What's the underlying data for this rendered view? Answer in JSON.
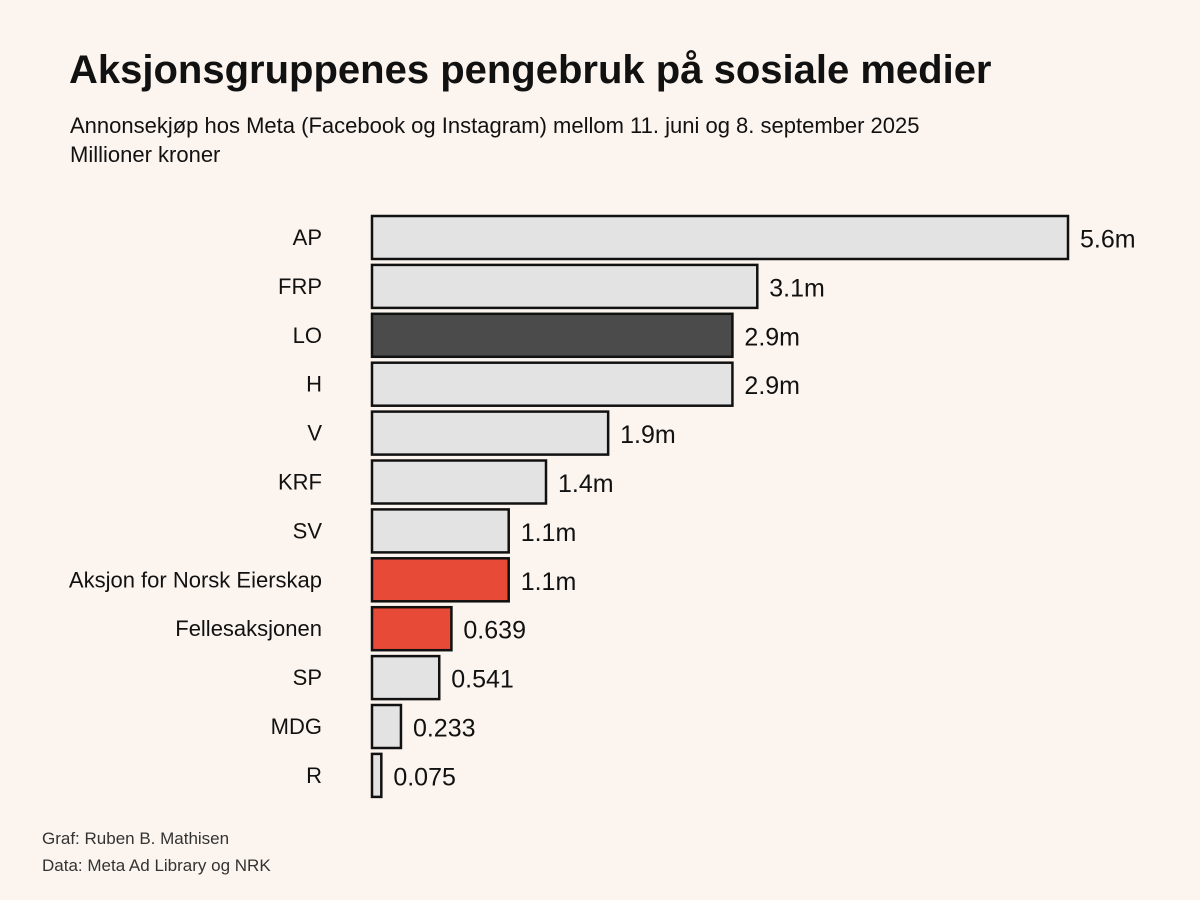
{
  "background": "#fcf5ef",
  "header": {
    "title": "Aksjonsgruppenes pengebruk på sosiale medier",
    "subtitle": "Annonsekjøp hos Meta (Facebook og Instagram) mellom 11. juni og 8. september 2025",
    "unit_note": "Millioner kroner"
  },
  "footer": {
    "graph_credit": "Graf: Ruben B. Mathisen",
    "data_credit": "Data: Meta Ad Library og NRK"
  },
  "colors": {
    "default_bar": "#e3e3e3",
    "lo_bar": "#4b4b4b",
    "action_group_bar": "#e84a38",
    "bar_outline": "#111111",
    "text": "#111111"
  },
  "chart_data": {
    "type": "bar",
    "orientation": "horizontal",
    "title": "Aksjonsgruppenes pengebruk på sosiale medier",
    "subtitle": "Annonsekjøp hos Meta (Facebook og Instagram) mellom 11. juni og 8. september 2025",
    "unit": "Millioner kroner",
    "xlim": [
      0,
      5.6
    ],
    "grid": false,
    "legend": "none",
    "categories": [
      "AP",
      "FRP",
      "LO",
      "H",
      "V",
      "KRF",
      "SV",
      "Aksjon for Norsk Eierskap",
      "Fellesaksjonen",
      "SP",
      "MDG",
      "R"
    ],
    "values": [
      5.6,
      3.1,
      2.9,
      2.9,
      1.9,
      1.4,
      1.1,
      1.1,
      0.639,
      0.541,
      0.233,
      0.075
    ],
    "data_labels": [
      "5.6m",
      "3.1m",
      "2.9m",
      "2.9m",
      "1.9m",
      "1.4m",
      "1.1m",
      "1.1m",
      "0.639",
      "0.541",
      "0.233",
      "0.075"
    ],
    "bar_colors": [
      "#e3e3e3",
      "#e3e3e3",
      "#4b4b4b",
      "#e3e3e3",
      "#e3e3e3",
      "#e3e3e3",
      "#e3e3e3",
      "#e84a38",
      "#e84a38",
      "#e3e3e3",
      "#e3e3e3",
      "#e3e3e3"
    ]
  }
}
